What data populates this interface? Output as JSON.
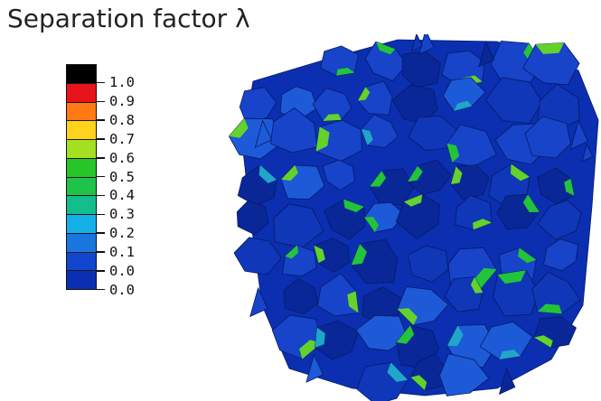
{
  "title": "Separation factor λ",
  "legend": {
    "colors": [
      "#000000",
      "#e8141b",
      "#ff7a13",
      "#ffd21b",
      "#a4e021",
      "#27c42a",
      "#1ec34a",
      "#14bd8c",
      "#16b0e8",
      "#1a76df",
      "#1346cf",
      "#0a2fb3"
    ],
    "tick_labels": [
      "1.0",
      "0.9",
      "0.8",
      "0.7",
      "0.6",
      "0.5",
      "0.4",
      "0.3",
      "0.2",
      "0.1",
      "0.0",
      "0.0"
    ]
  },
  "figure": {
    "base_color": "#0b2fb0",
    "shade_colors": [
      "#0a2798",
      "#1744c8",
      "#1d5ad8",
      "#0f37b8"
    ],
    "highlight_colors": [
      "#23c33a",
      "#63d22a",
      "#1fa6c8"
    ]
  }
}
